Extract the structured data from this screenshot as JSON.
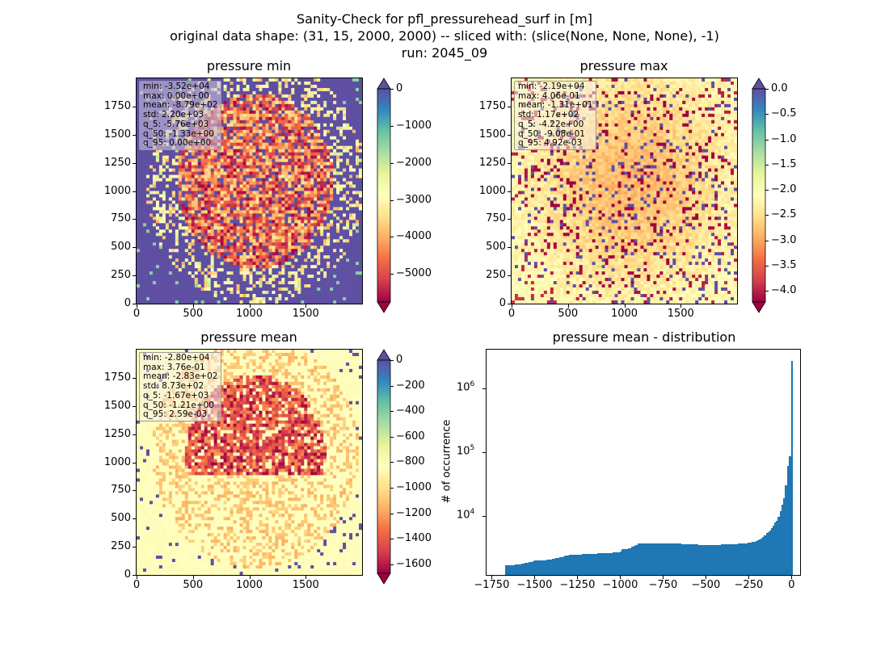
{
  "suptitle": {
    "line1": "Sanity-Check for pfl_pressurehead_surf in [m]",
    "line2": "original data shape: (31, 15, 2000, 2000) -- sliced with: (slice(None, None, None), -1)",
    "line3": "run: 2045_09"
  },
  "chart_data": [
    {
      "type": "heatmap",
      "title": "pressure min",
      "xlim": [
        0,
        2000
      ],
      "ylim": [
        0,
        2000
      ],
      "xticks": [
        "0",
        "500",
        "1000",
        "1500"
      ],
      "yticks": [
        "0",
        "250",
        "500",
        "750",
        "1000",
        "1250",
        "1500",
        "1750"
      ],
      "colormap": "Spectral",
      "colorbar_ticks": [
        "0",
        "−1000",
        "−2000",
        "−3000",
        "−4000",
        "−5000"
      ],
      "colorbar_range": [
        -5760,
        0
      ],
      "stats": [
        "min: -3.52e+04",
        "max: 0.00e+00",
        "mean: -8.79e+02",
        "std: 2.20e+03",
        "q_5: -5.76e+03",
        "q_50: -1.33e+00",
        "q_95: 0.00e+00"
      ]
    },
    {
      "type": "heatmap",
      "title": "pressure max",
      "xlim": [
        0,
        2000
      ],
      "ylim": [
        0,
        2000
      ],
      "xticks": [
        "0",
        "500",
        "1000",
        "1500"
      ],
      "yticks": [
        "0",
        "250",
        "500",
        "750",
        "1000",
        "1250",
        "1500",
        "1750"
      ],
      "colormap": "Spectral",
      "colorbar_ticks": [
        "0.0",
        "−0.5",
        "−1.0",
        "−1.5",
        "−2.0",
        "−2.5",
        "−3.0",
        "−3.5",
        "−4.0"
      ],
      "colorbar_range": [
        -4.22,
        0
      ],
      "stats": [
        "min: -2.19e+04",
        "max: 4.06e-01",
        "mean: -1.31e+01",
        "std: 1.17e+02",
        "q_5: -4.22e+00",
        "q_50: -9.08e-01",
        "q_95: 4.92e-03"
      ]
    },
    {
      "type": "heatmap",
      "title": "pressure mean",
      "xlim": [
        0,
        2000
      ],
      "ylim": [
        0,
        2000
      ],
      "xticks": [
        "0",
        "500",
        "1000",
        "1500"
      ],
      "yticks": [
        "0",
        "250",
        "500",
        "750",
        "1000",
        "1250",
        "1500",
        "1750"
      ],
      "colormap": "Spectral",
      "colorbar_ticks": [
        "0",
        "−200",
        "−400",
        "−600",
        "−800",
        "−1000",
        "−1200",
        "−1400",
        "−1600"
      ],
      "colorbar_range": [
        -1670,
        0
      ],
      "stats": [
        "min: -2.80e+04",
        "max: 3.76e-01",
        "mean: -2.83e+02",
        "std: 8.73e+02",
        "q_5: -1.67e+03",
        "q_50: -1.21e+00",
        "q_95: 2.59e-03"
      ]
    },
    {
      "type": "bar",
      "title": "pressure mean - distribution",
      "ylabel": "# of occurrence",
      "yscale": "log",
      "xlim": [
        -1780,
        50
      ],
      "ylim": [
        1200,
        4000000
      ],
      "xticks": [
        "−1750",
        "−1500",
        "−1250",
        "−1000",
        "−750",
        "−500",
        "−250",
        "0"
      ],
      "xtick_values": [
        -1750,
        -1500,
        -1250,
        -1000,
        -750,
        -500,
        -250,
        0
      ],
      "yticks": [
        "10",
        "10",
        "10"
      ],
      "ytick_exponents": [
        "4",
        "5",
        "6"
      ],
      "ytick_values": [
        10000,
        100000,
        1000000
      ],
      "bar_color": "#1f77b4",
      "bins": [
        [
          -1670,
          1700
        ],
        [
          -1500,
          2000
        ],
        [
          -1300,
          2500
        ],
        [
          -1100,
          2650
        ],
        [
          -1010,
          2700
        ],
        [
          -990,
          3000
        ],
        [
          -900,
          3700
        ],
        [
          -800,
          3700
        ],
        [
          -700,
          3700
        ],
        [
          -600,
          3600
        ],
        [
          -500,
          3500
        ],
        [
          -400,
          3600
        ],
        [
          -300,
          3700
        ],
        [
          -200,
          4200
        ],
        [
          -150,
          5500
        ],
        [
          -100,
          8000
        ],
        [
          -60,
          15000
        ],
        [
          -40,
          30000
        ],
        [
          -25,
          60000
        ],
        [
          -15,
          85000
        ],
        [
          -8,
          60000
        ],
        [
          -3,
          2700000
        ]
      ]
    }
  ]
}
